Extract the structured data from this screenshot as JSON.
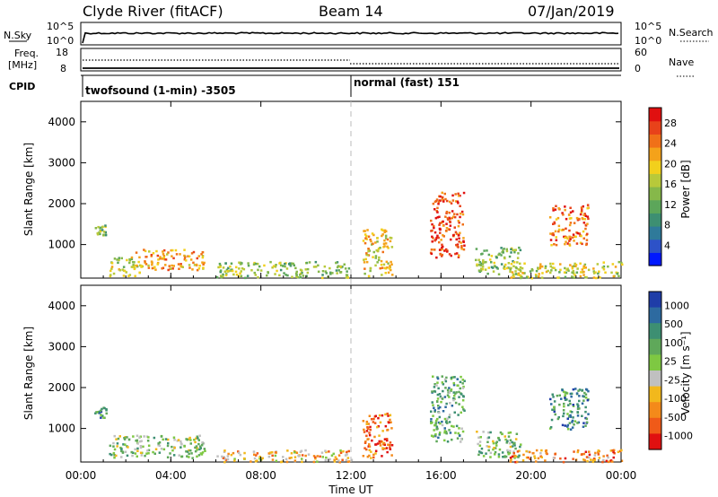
{
  "header": {
    "site": "Clyde River (fitACF)",
    "beam": "Beam 14",
    "date": "07/Jan/2019"
  },
  "strips": {
    "nsky": {
      "label": "N.Sky",
      "ticks": [
        "10^5",
        "10^0"
      ],
      "right_ticks": [
        "10^5",
        "10^0"
      ],
      "right_label": "N.Search"
    },
    "freq": {
      "label_lines": [
        "Freq.",
        "[MHz]"
      ],
      "ticks": [
        "18",
        "8"
      ],
      "right_ticks": [
        "60",
        "0"
      ],
      "right_label": "Nave"
    },
    "cpid": {
      "label": "CPID",
      "segments": [
        "twofsound (1-min) -3505",
        "normal (fast) 151"
      ],
      "switch_hour": 12
    }
  },
  "chart_data": [
    {
      "type": "heatmap",
      "title": "Power",
      "xlabel": "",
      "ylabel": "Slant Range [km]",
      "xlim": [
        0,
        24
      ],
      "ylim": [
        180,
        4500
      ],
      "x_ticks": [
        0,
        4,
        8,
        12,
        16,
        20,
        24
      ],
      "y_ticks": [
        1000,
        2000,
        3000,
        4000
      ],
      "colorbar": {
        "label": "Power [dB]",
        "ticks": [
          "4",
          "8",
          "12",
          "16",
          "20",
          "24",
          "28"
        ],
        "colors": [
          "#0018ff",
          "#2d52c8",
          "#2f7a9a",
          "#3d8f72",
          "#5ca65a",
          "#86b84a",
          "#b8c93a",
          "#f2d01c",
          "#f4a21a",
          "#f07018",
          "#e8421a",
          "#e01010"
        ]
      },
      "echo_regions": [
        {
          "t0": 0.6,
          "t1": 1.1,
          "r0": 1250,
          "r1": 1550,
          "level": 5
        },
        {
          "t0": 1.2,
          "t1": 2.6,
          "r0": 250,
          "r1": 700,
          "level": 6
        },
        {
          "t0": 2.2,
          "t1": 5.5,
          "r0": 400,
          "r1": 900,
          "level": 8
        },
        {
          "t0": 6.0,
          "t1": 12.0,
          "r0": 200,
          "r1": 600,
          "level": 5
        },
        {
          "t0": 12.5,
          "t1": 13.8,
          "r0": 250,
          "r1": 1400,
          "level": 7
        },
        {
          "t0": 15.5,
          "t1": 17.0,
          "r0": 700,
          "r1": 2300,
          "level": 10
        },
        {
          "t0": 17.5,
          "t1": 19.5,
          "r0": 300,
          "r1": 950,
          "level": 5
        },
        {
          "t0": 20.8,
          "t1": 22.5,
          "r0": 1000,
          "r1": 2000,
          "level": 9
        },
        {
          "t0": 19.0,
          "t1": 24.0,
          "r0": 200,
          "r1": 600,
          "level": 6
        }
      ]
    },
    {
      "type": "heatmap",
      "title": "Velocity",
      "xlabel": "Time UT",
      "ylabel": "Slant Range [km]",
      "xlim": [
        0,
        24
      ],
      "ylim": [
        180,
        4500
      ],
      "x_ticks": [
        0,
        4,
        8,
        12,
        16,
        20,
        24
      ],
      "x_tick_labels": [
        "00:00",
        "04:00",
        "08:00",
        "12:00",
        "16:00",
        "20:00",
        "00:00"
      ],
      "y_ticks": [
        1000,
        2000,
        3000,
        4000
      ],
      "colorbar": {
        "label": "Velocity [m s⁻¹]",
        "ticks": [
          "1000",
          "500",
          "100",
          "25",
          "-25",
          "-100",
          "-500",
          "-1000"
        ],
        "colors": [
          "#1f3da8",
          "#2d6aa0",
          "#3d8f72",
          "#5fa85a",
          "#7ec842",
          "#c0c0c0",
          "#f2b81c",
          "#f48a1a",
          "#f05a18",
          "#e01010"
        ]
      },
      "echo_regions": [
        {
          "t0": 0.6,
          "t1": 1.1,
          "r0": 1250,
          "r1": 1550,
          "level": 2
        },
        {
          "t0": 1.2,
          "t1": 5.5,
          "r0": 300,
          "r1": 850,
          "level": 4
        },
        {
          "t0": 6.0,
          "t1": 12.0,
          "r0": 200,
          "r1": 500,
          "level": 6
        },
        {
          "t0": 12.5,
          "t1": 13.8,
          "r0": 300,
          "r1": 1400,
          "level": 8
        },
        {
          "t0": 15.5,
          "t1": 17.0,
          "r0": 700,
          "r1": 2300,
          "level": 3
        },
        {
          "t0": 17.5,
          "t1": 19.5,
          "r0": 300,
          "r1": 950,
          "level": 4
        },
        {
          "t0": 20.8,
          "t1": 22.5,
          "r0": 1000,
          "r1": 2000,
          "level": 2
        },
        {
          "t0": 19.0,
          "t1": 24.0,
          "r0": 200,
          "r1": 500,
          "level": 7
        }
      ]
    }
  ]
}
